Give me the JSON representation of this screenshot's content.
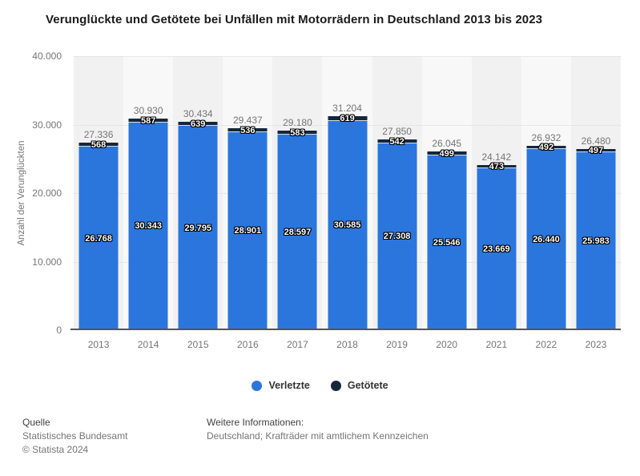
{
  "title": "Verunglückte und Getötete bei Unfällen mit Motorrädern in Deutschland 2013 bis 2023",
  "y_axis_title": "Anzahl der Verunglückten",
  "chart_data": {
    "type": "bar",
    "stacked": true,
    "title": "Verunglückte und Getötete bei Unfällen mit Motorrädern in Deutschland 2013 bis 2023",
    "categories": [
      "2013",
      "2014",
      "2015",
      "2016",
      "2017",
      "2018",
      "2019",
      "2020",
      "2021",
      "2022",
      "2023"
    ],
    "series": [
      {
        "name": "Verletzte",
        "color": "#2b76dc",
        "values": [
          26768,
          30343,
          29795,
          28901,
          28597,
          30585,
          27308,
          25546,
          23669,
          26440,
          25983
        ],
        "value_labels": [
          "26.768",
          "30.343",
          "29.795",
          "28.901",
          "28.597",
          "30.585",
          "27.308",
          "25.546",
          "23.669",
          "26.440",
          "25.983"
        ]
      },
      {
        "name": "Getötete",
        "color": "#16273b",
        "values": [
          568,
          587,
          639,
          536,
          583,
          619,
          542,
          499,
          473,
          492,
          497
        ],
        "value_labels": [
          "568",
          "587",
          "639",
          "536",
          "583",
          "619",
          "542",
          "499",
          "473",
          "492",
          "497"
        ]
      }
    ],
    "totals": [
      27336,
      30930,
      30434,
      29437,
      29180,
      31204,
      27850,
      26045,
      24142,
      26932,
      26480
    ],
    "total_labels": [
      "27.336",
      "30.930",
      "30.434",
      "29.437",
      "29.180",
      "31.204",
      "27.850",
      "26.045",
      "24.142",
      "26.932",
      "26.480"
    ],
    "xlabel": "",
    "ylabel": "Anzahl der Verunglückten",
    "ylim": [
      0,
      40000
    ],
    "yticks": [
      {
        "label": "40.000",
        "value": 40000
      },
      {
        "label": "30.000",
        "value": 30000
      },
      {
        "label": "20.000",
        "value": 20000
      },
      {
        "label": "10.000",
        "value": 10000
      },
      {
        "label": "0",
        "value": 0
      }
    ],
    "grid": "horizontal-dotted",
    "legend_position": "bottom"
  },
  "legend": {
    "items": [
      {
        "label": "Verletzte",
        "color": "#2b76dc"
      },
      {
        "label": "Getötete",
        "color": "#16273b"
      }
    ]
  },
  "footer": {
    "source_heading": "Quelle",
    "source": "Statistisches Bundesamt",
    "copyright": "© Statista 2024",
    "info_heading": "Weitere Informationen:",
    "info": "Deutschland; Krafträder mit amtlichem Kennzeichen"
  },
  "colors": {
    "verletzte": "#2b76dc",
    "getoetete": "#16273b",
    "band_odd": "#f1f1f1",
    "band_even": "#f8f8f8",
    "gridline": "#d9d9d9",
    "axis_line": "#555555",
    "muted_text": "#757575",
    "title_text": "#1a1a1a"
  }
}
